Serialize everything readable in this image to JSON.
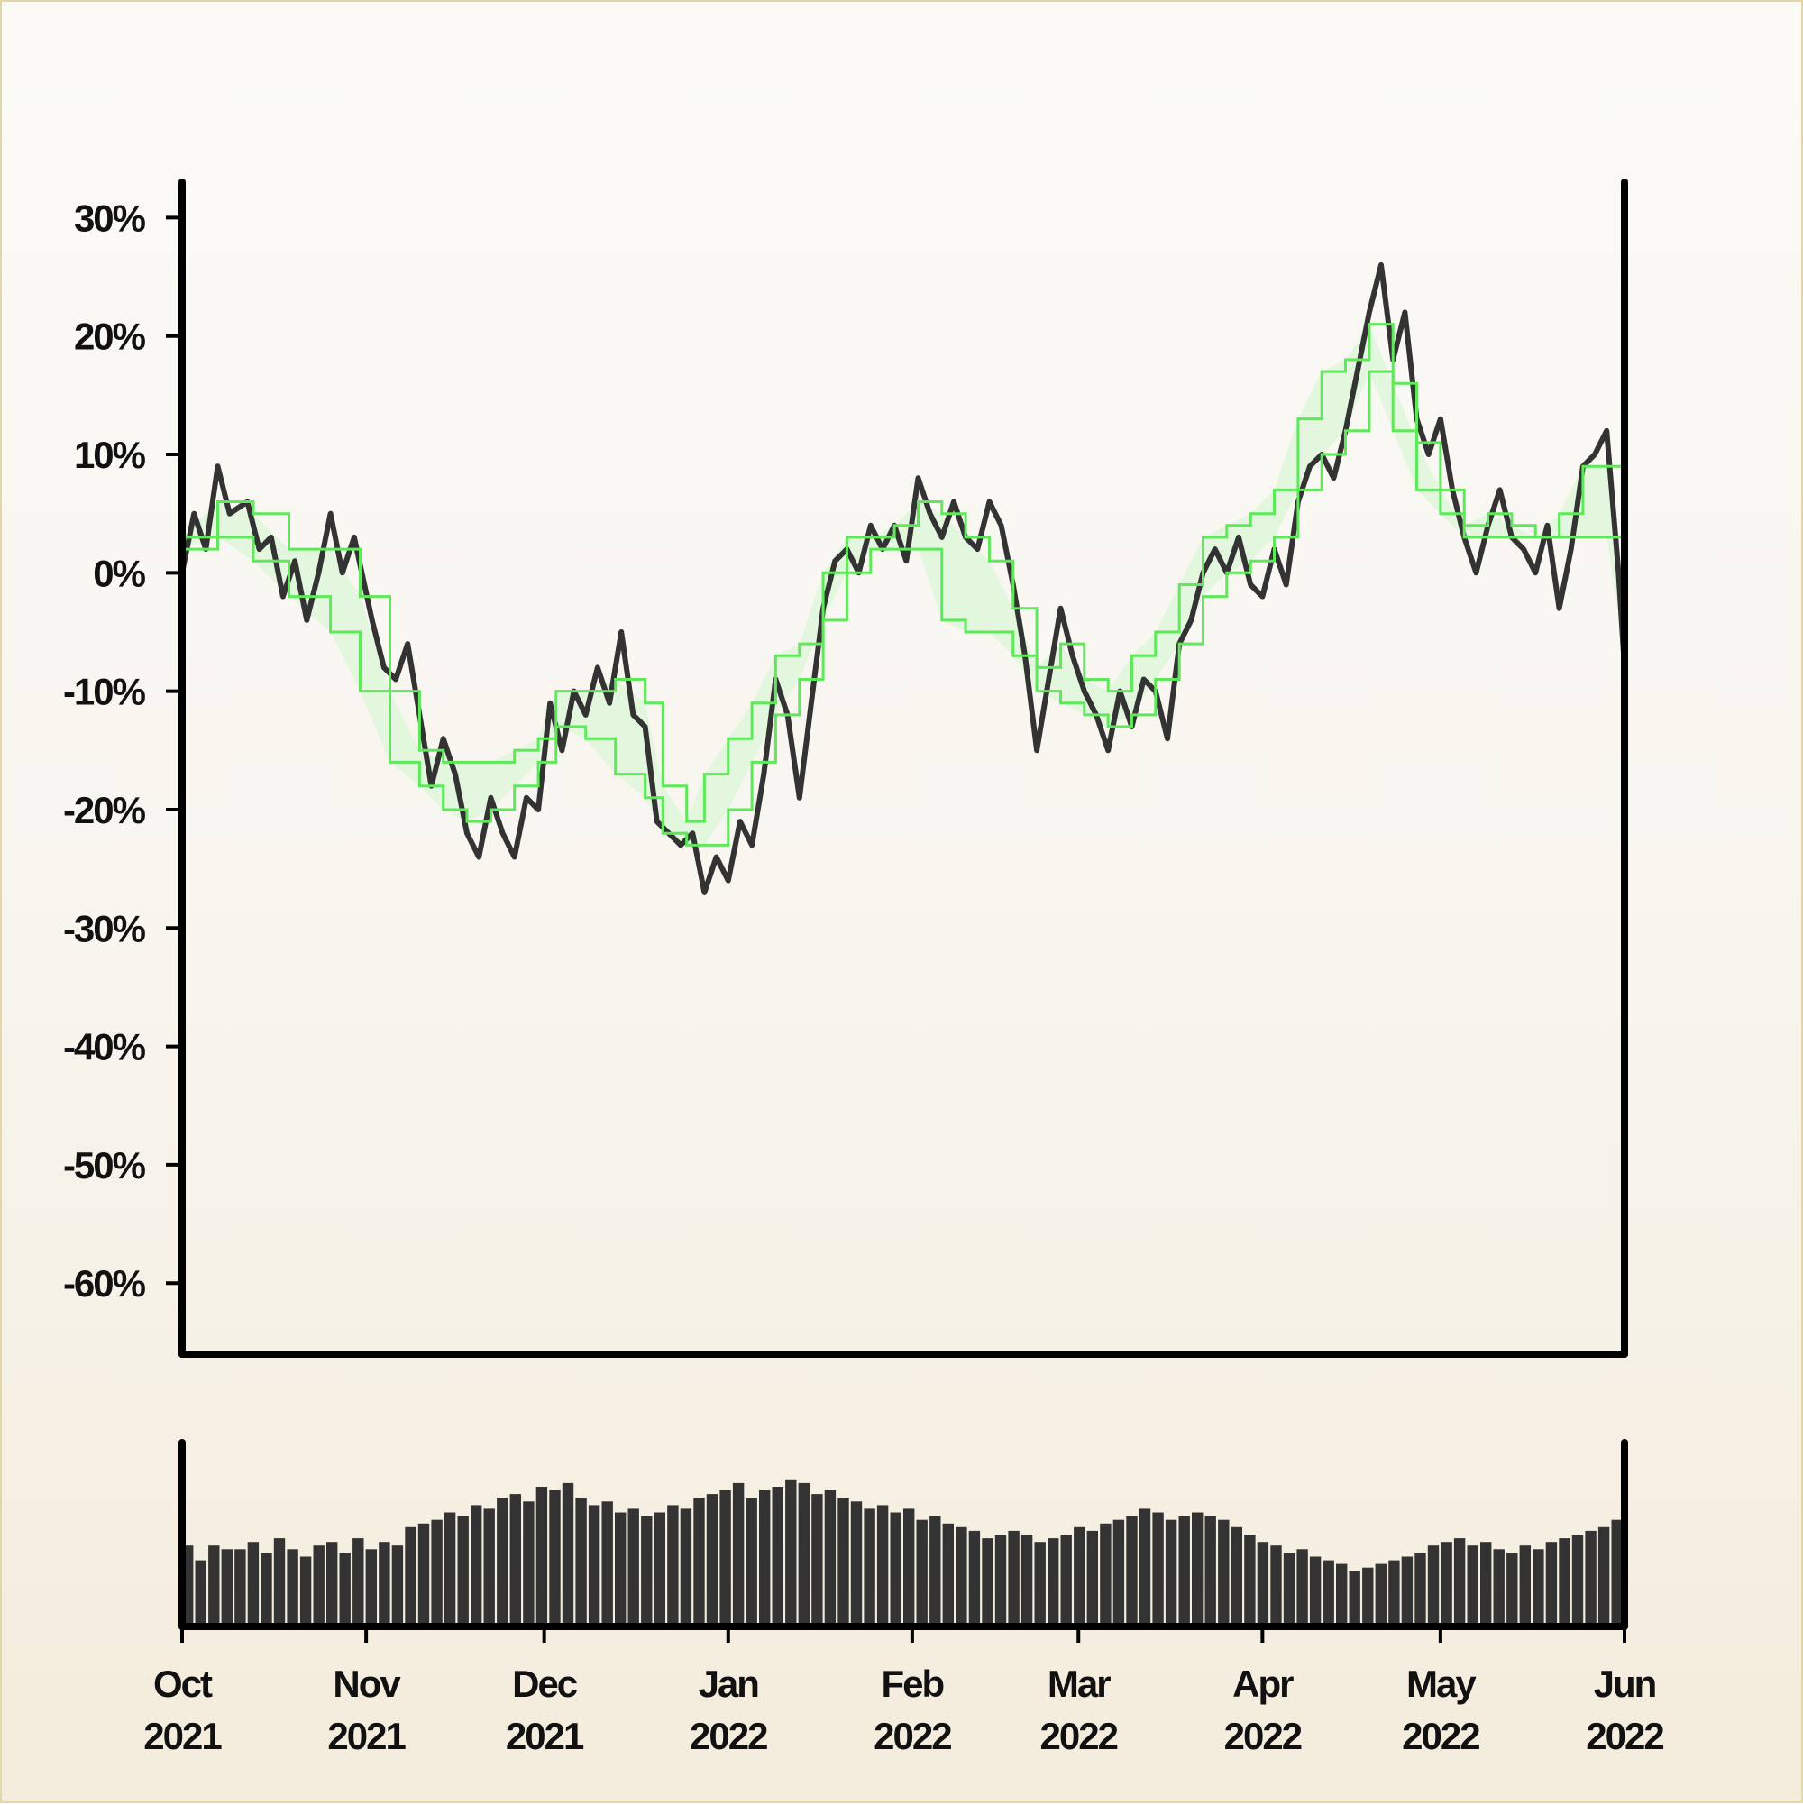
{
  "chart_data": {
    "type": "line",
    "title": "",
    "xlabel": "",
    "ylabel": "",
    "x_range": [
      "2021-10-01",
      "2022-06-01"
    ],
    "ylim": [
      -66,
      33
    ],
    "y_ticks": [
      30,
      20,
      10,
      0,
      -10,
      -20,
      -30,
      -40,
      -50,
      -60
    ],
    "y_tick_labels": [
      "30%",
      "20%",
      "10%",
      "0%",
      "-10%",
      "-20%",
      "-30%",
      "-40%",
      "-50%",
      "-60%"
    ],
    "x_ticks": [
      "2021-10-01",
      "2021-11-01",
      "2021-12-01",
      "2022-01-01",
      "2022-02-01",
      "2022-03-01",
      "2022-04-01",
      "2022-05-01",
      "2022-06-01"
    ],
    "x_tick_labels": [
      [
        "Oct",
        "2021"
      ],
      [
        "Nov",
        "2021"
      ],
      [
        "Dec",
        "2021"
      ],
      [
        "Jan",
        "2022"
      ],
      [
        "Feb",
        "2022"
      ],
      [
        "Mar",
        "2022"
      ],
      [
        "Apr",
        "2022"
      ],
      [
        "May",
        "2022"
      ],
      [
        "Jun",
        "2022"
      ]
    ],
    "grid": false,
    "colors": {
      "price": "#333333",
      "band": "#5ee85a",
      "band_fill": "#e3f7df",
      "volume": "#333333",
      "axis": "#000000"
    },
    "series": [
      {
        "values_unit": "percent",
        "points": [
          [
            "2021-10-01",
            0
          ],
          [
            "2021-10-03",
            5
          ],
          [
            "2021-10-05",
            2
          ],
          [
            "2021-10-07",
            9
          ],
          [
            "2021-10-09",
            5
          ],
          [
            "2021-10-12",
            6
          ],
          [
            "2021-10-14",
            2
          ],
          [
            "2021-10-16",
            3
          ],
          [
            "2021-10-18",
            -2
          ],
          [
            "2021-10-20",
            1
          ],
          [
            "2021-10-22",
            -4
          ],
          [
            "2021-10-24",
            0
          ],
          [
            "2021-10-26",
            5
          ],
          [
            "2021-10-28",
            0
          ],
          [
            "2021-10-30",
            3
          ],
          [
            "2021-11-02",
            -4
          ],
          [
            "2021-11-04",
            -8
          ],
          [
            "2021-11-06",
            -9
          ],
          [
            "2021-11-08",
            -6
          ],
          [
            "2021-11-10",
            -12
          ],
          [
            "2021-11-12",
            -18
          ],
          [
            "2021-11-14",
            -14
          ],
          [
            "2021-11-16",
            -17
          ],
          [
            "2021-11-18",
            -22
          ],
          [
            "2021-11-20",
            -24
          ],
          [
            "2021-11-22",
            -19
          ],
          [
            "2021-11-24",
            -22
          ],
          [
            "2021-11-26",
            -24
          ],
          [
            "2021-11-28",
            -19
          ],
          [
            "2021-11-30",
            -20
          ],
          [
            "2021-12-02",
            -11
          ],
          [
            "2021-12-04",
            -15
          ],
          [
            "2021-12-06",
            -10
          ],
          [
            "2021-12-08",
            -12
          ],
          [
            "2021-12-10",
            -8
          ],
          [
            "2021-12-12",
            -11
          ],
          [
            "2021-12-14",
            -5
          ],
          [
            "2021-12-16",
            -12
          ],
          [
            "2021-12-18",
            -13
          ],
          [
            "2021-12-20",
            -21
          ],
          [
            "2021-12-22",
            -22
          ],
          [
            "2021-12-24",
            -23
          ],
          [
            "2021-12-26",
            -22
          ],
          [
            "2021-12-28",
            -27
          ],
          [
            "2021-12-30",
            -24
          ],
          [
            "2022-01-01",
            -26
          ],
          [
            "2022-01-03",
            -21
          ],
          [
            "2022-01-05",
            -23
          ],
          [
            "2022-01-07",
            -17
          ],
          [
            "2022-01-09",
            -9
          ],
          [
            "2022-01-11",
            -12
          ],
          [
            "2022-01-13",
            -19
          ],
          [
            "2022-01-15",
            -11
          ],
          [
            "2022-01-17",
            -3
          ],
          [
            "2022-01-19",
            1
          ],
          [
            "2022-01-21",
            2
          ],
          [
            "2022-01-23",
            0
          ],
          [
            "2022-01-25",
            4
          ],
          [
            "2022-01-27",
            2
          ],
          [
            "2022-01-29",
            4
          ],
          [
            "2022-01-31",
            1
          ],
          [
            "2022-02-02",
            8
          ],
          [
            "2022-02-04",
            5
          ],
          [
            "2022-02-06",
            3
          ],
          [
            "2022-02-08",
            6
          ],
          [
            "2022-02-10",
            3
          ],
          [
            "2022-02-12",
            2
          ],
          [
            "2022-02-14",
            6
          ],
          [
            "2022-02-16",
            4
          ],
          [
            "2022-02-18",
            -1
          ],
          [
            "2022-02-20",
            -7
          ],
          [
            "2022-02-22",
            -15
          ],
          [
            "2022-02-24",
            -9
          ],
          [
            "2022-02-26",
            -3
          ],
          [
            "2022-02-28",
            -7
          ],
          [
            "2022-03-02",
            -10
          ],
          [
            "2022-03-04",
            -12
          ],
          [
            "2022-03-06",
            -15
          ],
          [
            "2022-03-08",
            -10
          ],
          [
            "2022-03-10",
            -13
          ],
          [
            "2022-03-12",
            -9
          ],
          [
            "2022-03-14",
            -10
          ],
          [
            "2022-03-16",
            -14
          ],
          [
            "2022-03-18",
            -6
          ],
          [
            "2022-03-20",
            -4
          ],
          [
            "2022-03-22",
            0
          ],
          [
            "2022-03-24",
            2
          ],
          [
            "2022-03-26",
            0
          ],
          [
            "2022-03-28",
            3
          ],
          [
            "2022-03-30",
            -1
          ],
          [
            "2022-04-01",
            -2
          ],
          [
            "2022-04-03",
            2
          ],
          [
            "2022-04-05",
            -1
          ],
          [
            "2022-04-07",
            6
          ],
          [
            "2022-04-09",
            9
          ],
          [
            "2022-04-11",
            10
          ],
          [
            "2022-04-13",
            8
          ],
          [
            "2022-04-15",
            12
          ],
          [
            "2022-04-17",
            17
          ],
          [
            "2022-04-19",
            22
          ],
          [
            "2022-04-21",
            26
          ],
          [
            "2022-04-23",
            18
          ],
          [
            "2022-04-25",
            22
          ],
          [
            "2022-04-27",
            13
          ],
          [
            "2022-04-29",
            10
          ],
          [
            "2022-05-01",
            13
          ],
          [
            "2022-05-03",
            7
          ],
          [
            "2022-05-05",
            3
          ],
          [
            "2022-05-07",
            0
          ],
          [
            "2022-05-09",
            4
          ],
          [
            "2022-05-11",
            7
          ],
          [
            "2022-05-13",
            3
          ],
          [
            "2022-05-15",
            2
          ],
          [
            "2022-05-17",
            0
          ],
          [
            "2022-05-19",
            4
          ],
          [
            "2022-05-21",
            -3
          ],
          [
            "2022-05-23",
            2
          ],
          [
            "2022-05-25",
            9
          ],
          [
            "2022-05-27",
            10
          ],
          [
            "2022-05-29",
            12
          ],
          [
            "2022-05-31",
            0
          ],
          [
            "2022-06-01",
            -8
          ]
        ]
      },
      {
        "values_unit": "percent",
        "upper": [
          [
            "2021-10-01",
            3
          ],
          [
            "2021-10-07",
            6
          ],
          [
            "2021-10-13",
            5
          ],
          [
            "2021-10-19",
            2
          ],
          [
            "2021-10-26",
            2
          ],
          [
            "2021-10-31",
            -2
          ],
          [
            "2021-11-05",
            -10
          ],
          [
            "2021-11-10",
            -15
          ],
          [
            "2021-11-14",
            -16
          ],
          [
            "2021-11-18",
            -16
          ],
          [
            "2021-11-22",
            -16
          ],
          [
            "2021-11-26",
            -15
          ],
          [
            "2021-11-30",
            -14
          ],
          [
            "2021-12-03",
            -10
          ],
          [
            "2021-12-08",
            -10
          ],
          [
            "2021-12-13",
            -9
          ],
          [
            "2021-12-18",
            -11
          ],
          [
            "2021-12-21",
            -18
          ],
          [
            "2021-12-25",
            -21
          ],
          [
            "2021-12-28",
            -17
          ],
          [
            "2022-01-01",
            -14
          ],
          [
            "2022-01-05",
            -11
          ],
          [
            "2022-01-09",
            -7
          ],
          [
            "2022-01-13",
            -6
          ],
          [
            "2022-01-17",
            0
          ],
          [
            "2022-01-21",
            3
          ],
          [
            "2022-01-25",
            3
          ],
          [
            "2022-01-29",
            4
          ],
          [
            "2022-02-02",
            6
          ],
          [
            "2022-02-06",
            5
          ],
          [
            "2022-02-10",
            3
          ],
          [
            "2022-02-14",
            1
          ],
          [
            "2022-02-18",
            -3
          ],
          [
            "2022-02-22",
            -8
          ],
          [
            "2022-02-26",
            -6
          ],
          [
            "2022-03-02",
            -9
          ],
          [
            "2022-03-06",
            -10
          ],
          [
            "2022-03-10",
            -7
          ],
          [
            "2022-03-14",
            -5
          ],
          [
            "2022-03-18",
            -1
          ],
          [
            "2022-03-22",
            3
          ],
          [
            "2022-03-26",
            4
          ],
          [
            "2022-03-30",
            5
          ],
          [
            "2022-04-03",
            7
          ],
          [
            "2022-04-07",
            13
          ],
          [
            "2022-04-11",
            17
          ],
          [
            "2022-04-15",
            18
          ],
          [
            "2022-04-19",
            21
          ],
          [
            "2022-04-23",
            16
          ],
          [
            "2022-04-27",
            11
          ],
          [
            "2022-05-01",
            7
          ],
          [
            "2022-05-05",
            4
          ],
          [
            "2022-05-09",
            5
          ],
          [
            "2022-05-13",
            4
          ],
          [
            "2022-05-17",
            3
          ],
          [
            "2022-05-21",
            5
          ],
          [
            "2022-05-25",
            9
          ],
          [
            "2022-05-29",
            9
          ],
          [
            "2022-06-01",
            -7
          ]
        ],
        "lower": [
          [
            "2021-10-01",
            2
          ],
          [
            "2021-10-07",
            3
          ],
          [
            "2021-10-13",
            1
          ],
          [
            "2021-10-19",
            -2
          ],
          [
            "2021-10-26",
            -5
          ],
          [
            "2021-10-31",
            -10
          ],
          [
            "2021-11-05",
            -16
          ],
          [
            "2021-11-10",
            -18
          ],
          [
            "2021-11-14",
            -20
          ],
          [
            "2021-11-18",
            -21
          ],
          [
            "2021-11-22",
            -20
          ],
          [
            "2021-11-26",
            -18
          ],
          [
            "2021-11-30",
            -16
          ],
          [
            "2021-12-03",
            -13
          ],
          [
            "2021-12-08",
            -14
          ],
          [
            "2021-12-13",
            -17
          ],
          [
            "2021-12-18",
            -19
          ],
          [
            "2021-12-21",
            -22
          ],
          [
            "2021-12-25",
            -23
          ],
          [
            "2021-12-28",
            -23
          ],
          [
            "2022-01-01",
            -20
          ],
          [
            "2022-01-05",
            -16
          ],
          [
            "2022-01-09",
            -12
          ],
          [
            "2022-01-13",
            -9
          ],
          [
            "2022-01-17",
            -4
          ],
          [
            "2022-01-21",
            0
          ],
          [
            "2022-01-25",
            2
          ],
          [
            "2022-01-29",
            2
          ],
          [
            "2022-02-02",
            2
          ],
          [
            "2022-02-06",
            -4
          ],
          [
            "2022-02-10",
            -5
          ],
          [
            "2022-02-14",
            -5
          ],
          [
            "2022-02-18",
            -7
          ],
          [
            "2022-02-22",
            -10
          ],
          [
            "2022-02-26",
            -11
          ],
          [
            "2022-03-02",
            -12
          ],
          [
            "2022-03-06",
            -13
          ],
          [
            "2022-03-10",
            -12
          ],
          [
            "2022-03-14",
            -9
          ],
          [
            "2022-03-18",
            -6
          ],
          [
            "2022-03-22",
            -2
          ],
          [
            "2022-03-26",
            0
          ],
          [
            "2022-03-30",
            1
          ],
          [
            "2022-04-03",
            3
          ],
          [
            "2022-04-07",
            7
          ],
          [
            "2022-04-11",
            10
          ],
          [
            "2022-04-15",
            12
          ],
          [
            "2022-04-19",
            17
          ],
          [
            "2022-04-23",
            12
          ],
          [
            "2022-04-27",
            7
          ],
          [
            "2022-05-01",
            5
          ],
          [
            "2022-05-05",
            3
          ],
          [
            "2022-05-09",
            3
          ],
          [
            "2022-05-13",
            3
          ],
          [
            "2022-05-17",
            3
          ],
          [
            "2022-05-21",
            3
          ],
          [
            "2022-05-25",
            3
          ],
          [
            "2022-05-29",
            3
          ],
          [
            "2022-06-01",
            -7
          ]
        ]
      }
    ],
    "volume": {
      "values_relative": [
        0.44,
        0.36,
        0.44,
        0.42,
        0.42,
        0.46,
        0.4,
        0.48,
        0.42,
        0.38,
        0.44,
        0.46,
        0.4,
        0.48,
        0.42,
        0.46,
        0.44,
        0.54,
        0.56,
        0.58,
        0.62,
        0.6,
        0.66,
        0.64,
        0.7,
        0.72,
        0.68,
        0.76,
        0.74,
        0.78,
        0.7,
        0.66,
        0.68,
        0.62,
        0.64,
        0.6,
        0.62,
        0.66,
        0.64,
        0.7,
        0.72,
        0.74,
        0.78,
        0.7,
        0.74,
        0.76,
        0.8,
        0.78,
        0.72,
        0.74,
        0.7,
        0.68,
        0.64,
        0.66,
        0.62,
        0.64,
        0.58,
        0.6,
        0.56,
        0.54,
        0.52,
        0.48,
        0.5,
        0.52,
        0.5,
        0.46,
        0.48,
        0.5,
        0.54,
        0.52,
        0.56,
        0.58,
        0.6,
        0.64,
        0.62,
        0.58,
        0.6,
        0.62,
        0.6,
        0.58,
        0.54,
        0.5,
        0.46,
        0.44,
        0.4,
        0.42,
        0.38,
        0.36,
        0.34,
        0.3,
        0.32,
        0.34,
        0.36,
        0.38,
        0.4,
        0.44,
        0.46,
        0.48,
        0.44,
        0.46,
        0.42,
        0.4,
        0.44,
        0.42,
        0.46,
        0.48,
        0.5,
        0.52,
        0.54,
        0.58
      ]
    }
  }
}
